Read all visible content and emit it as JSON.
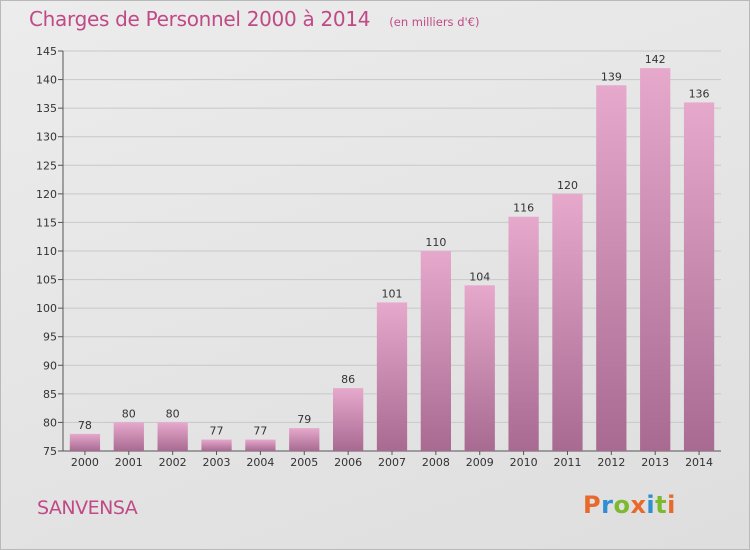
{
  "header": {
    "title": "Charges de Personnel 2000 à 2014",
    "subtitle": "(en milliers d'€)"
  },
  "footer": {
    "commune": "SANVENSA",
    "logo_text": "Proxiti"
  },
  "colors": {
    "title": "#c04a86",
    "bar_top": "#e6a9cc",
    "bar_bottom": "#a86a91",
    "logo_letters": [
      "#e8692b",
      "#2f8fd0",
      "#7cb92f",
      "#e8692b",
      "#2f8fd0",
      "#7cb92f",
      "#e8692b"
    ]
  },
  "chart_data": {
    "type": "bar",
    "categories": [
      "2000",
      "2001",
      "2002",
      "2003",
      "2004",
      "2005",
      "2006",
      "2007",
      "2008",
      "2009",
      "2010",
      "2011",
      "2012",
      "2013",
      "2014"
    ],
    "values": [
      78,
      80,
      80,
      77,
      77,
      79,
      86,
      101,
      110,
      104,
      116,
      120,
      139,
      142,
      136
    ],
    "title": "Charges de Personnel 2000 à 2014",
    "subtitle": "(en milliers d'€)",
    "ylim": [
      75,
      145
    ],
    "yticks": [
      75,
      80,
      85,
      90,
      95,
      100,
      105,
      110,
      115,
      120,
      125,
      130,
      135,
      140,
      145
    ],
    "grid": true,
    "data_labels": true
  }
}
